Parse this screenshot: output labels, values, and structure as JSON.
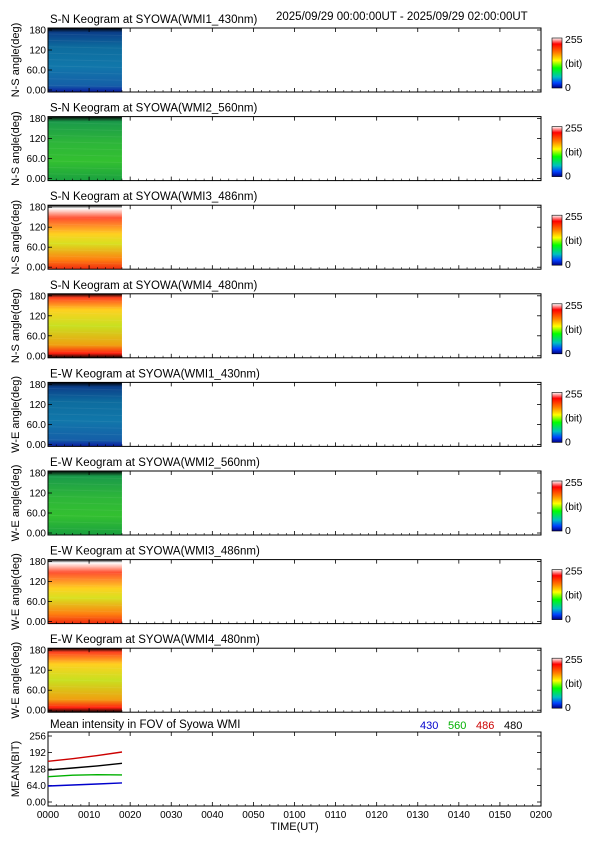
{
  "header": {
    "date_range": "2025/09/29 00:00:00UT - 2025/09/29 02:00:00UT"
  },
  "colors": {
    "ch430": "#0000cc",
    "ch560": "#00b000",
    "ch486": "#cc0000",
    "ch480": "#000000"
  },
  "colorbar": {
    "max_label": "255",
    "unit_label": "(bit)",
    "min_label": "0"
  },
  "keograms": [
    {
      "title": "S-N Keogram at SYOWA(WMI1_430nm)",
      "ylabel": "N-S angle(deg)",
      "ticks": [
        "180",
        "120",
        "60.0",
        "0.00"
      ],
      "palette": "blue",
      "data_end_hour": 0.3
    },
    {
      "title": "S-N Keogram at SYOWA(WMI2_560nm)",
      "ylabel": "N-S angle(deg)",
      "ticks": [
        "180",
        "120",
        "60.0",
        "0.00"
      ],
      "palette": "green",
      "data_end_hour": 0.3
    },
    {
      "title": "S-N Keogram at SYOWA(WMI3_486nm)",
      "ylabel": "N-S angle(deg)",
      "ticks": [
        "180",
        "120",
        "60.0",
        "0.00"
      ],
      "palette": "red-arc",
      "data_end_hour": 0.3
    },
    {
      "title": "S-N Keogram at SYOWA(WMI4_480nm)",
      "ylabel": "N-S angle(deg)",
      "ticks": [
        "180",
        "120",
        "60.0",
        "0.00"
      ],
      "palette": "yellow-arc",
      "data_end_hour": 0.3
    },
    {
      "title": "E-W Keogram at SYOWA(WMI1_430nm)",
      "ylabel": "W-E angle(deg)",
      "ticks": [
        "180",
        "120",
        "60.0",
        "0.00"
      ],
      "palette": "blue",
      "data_end_hour": 0.3
    },
    {
      "title": "E-W Keogram at SYOWA(WMI2_560nm)",
      "ylabel": "W-E angle(deg)",
      "ticks": [
        "180",
        "120",
        "60.0",
        "0.00"
      ],
      "palette": "green",
      "data_end_hour": 0.3
    },
    {
      "title": "E-W Keogram at SYOWA(WMI3_486nm)",
      "ylabel": "W-E angle(deg)",
      "ticks": [
        "180",
        "120",
        "60.0",
        "0.00"
      ],
      "palette": "red-arc",
      "data_end_hour": 0.3
    },
    {
      "title": "E-W Keogram at SYOWA(WMI4_480nm)",
      "ylabel": "W-E angle(deg)",
      "ticks": [
        "180",
        "120",
        "60.0",
        "0.00"
      ],
      "palette": "yellow-arc",
      "data_end_hour": 0.3
    }
  ],
  "chart_data": {
    "type": "line",
    "title": "Mean intensity in FOV of Syowa WMI",
    "xlabel": "TIME(UT)",
    "ylabel": "MEAN(BIT)",
    "xlim": [
      "0000",
      "0200"
    ],
    "ylim": [
      0,
      256
    ],
    "yticks": [
      "256",
      "192",
      "128",
      "64.0",
      "0.00"
    ],
    "xticks": [
      "0000",
      "0010",
      "0020",
      "0030",
      "0040",
      "0050",
      "0100",
      "0110",
      "0120",
      "0130",
      "0140",
      "0150",
      "0200"
    ],
    "legend_placement": "top-right",
    "x_minutes": [
      0,
      6,
      12,
      18
    ],
    "series": [
      {
        "name": "430",
        "color": "#0000cc",
        "values": [
          62,
          66,
          70,
          74
        ]
      },
      {
        "name": "560",
        "color": "#00b000",
        "values": [
          98,
          104,
          106,
          105
        ]
      },
      {
        "name": "486",
        "color": "#cc0000",
        "values": [
          158,
          168,
          180,
          194
        ]
      },
      {
        "name": "480",
        "color": "#000000",
        "values": [
          124,
          132,
          140,
          150
        ]
      }
    ]
  }
}
